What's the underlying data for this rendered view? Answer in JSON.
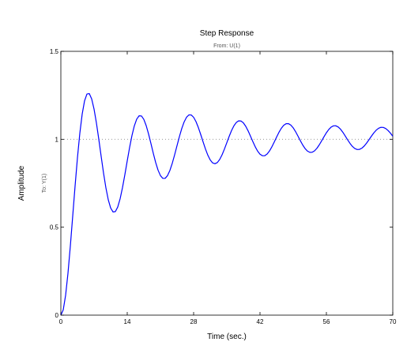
{
  "chart_data": {
    "type": "line",
    "title": "Step Response",
    "subtitle": "From: U(1)",
    "xlabel": "Time (sec.)",
    "ylabel": "Amplitude",
    "ylabel_secondary": "To: Y(1)",
    "xlim": [
      0,
      70
    ],
    "ylim": [
      0,
      1.5
    ],
    "xticks": [
      0,
      14,
      28,
      42,
      56,
      70
    ],
    "xtick_labels": [
      "0",
      "14",
      "28",
      "42",
      "56",
      "70"
    ],
    "yticks": [
      0,
      0.5,
      1,
      1.5
    ],
    "ytick_labels": [
      "0",
      "0.5",
      "1",
      "1.5"
    ],
    "reference_line": {
      "y": 1,
      "style": "dotted"
    },
    "grid": false,
    "colors": {
      "series": "#0000ff",
      "axes": "#000000",
      "reference": "#888888"
    },
    "series": [
      {
        "x": [
          0,
          0.5,
          1,
          1.5,
          2,
          2.5,
          3,
          3.5,
          4,
          4.5,
          5,
          5.5,
          6,
          6.5,
          7,
          7.5,
          8,
          8.5,
          9,
          9.5,
          10,
          10.5,
          11,
          11.5,
          12,
          12.5,
          13,
          13.5,
          14,
          14.5,
          15,
          15.5,
          16,
          16.5,
          17,
          17.5,
          18,
          18.5,
          19,
          19.5,
          20,
          20.5,
          21,
          21.5,
          22,
          22.5,
          23,
          23.5,
          24,
          24.5,
          25,
          25.5,
          26,
          26.5,
          27,
          27.5,
          28,
          28.5,
          29,
          29.5,
          30,
          30.5,
          31,
          31.5,
          32,
          32.5,
          33,
          33.5,
          34,
          34.5,
          35,
          35.5,
          36,
          36.5,
          37,
          37.5,
          38,
          38.5,
          39,
          39.5,
          40,
          40.5,
          41,
          41.5,
          42,
          42.5,
          43,
          43.5,
          44,
          44.5,
          45,
          45.5,
          46,
          46.5,
          47,
          47.5,
          48,
          48.5,
          49,
          49.5,
          50,
          50.5,
          51,
          51.5,
          52,
          52.5,
          53,
          53.5,
          54,
          54.5,
          55,
          55.5,
          56,
          56.5,
          57,
          57.5,
          58,
          58.5,
          59,
          59.5,
          60,
          60.5,
          61,
          61.5,
          62,
          62.5,
          63,
          63.5,
          64,
          64.5,
          65,
          65.5,
          66,
          66.5,
          67,
          67.5,
          68,
          68.5,
          69,
          69.5,
          70
        ],
        "y": [
          0,
          0.0295,
          0.1125,
          0.2379,
          0.3926,
          0.5626,
          0.7342,
          0.8948,
          1.0339,
          1.1435,
          1.2186,
          1.2571,
          1.2597,
          1.2295,
          1.1716,
          1.0926,
          1.0003,
          0.9028,
          0.8082,
          0.7239,
          0.656,
          0.6094,
          0.5867,
          0.5889,
          0.6149,
          0.6618,
          0.7251,
          0.799,
          0.8773,
          0.9535,
          1.0216,
          1.0766,
          1.1146,
          1.1334,
          1.1325,
          1.1129,
          1.0773,
          1.0299,
          0.9756,
          0.9197,
          0.8677,
          0.8244,
          0.7935,
          0.7777,
          0.7778,
          0.7935,
          0.8231,
          0.8639,
          0.9122,
          0.964,
          1.015,
          1.0611,
          1.0987,
          1.1251,
          1.1385,
          1.1383,
          1.125,
          1.1003,
          1.0665,
          1.0268,
          0.9849,
          0.9445,
          0.9093,
          0.8823,
          0.8657,
          0.8608,
          0.8676,
          0.8852,
          0.9117,
          0.9445,
          0.9805,
          1.0167,
          1.0497,
          1.0767,
          1.0956,
          1.1048,
          1.1038,
          1.0929,
          1.0734,
          1.0473,
          1.0172,
          0.9861,
          0.9569,
          0.9325,
          0.9152,
          0.9064,
          0.9068,
          0.9162,
          0.9335,
          0.957,
          0.9843,
          1.0128,
          1.0398,
          1.0627,
          1.0794,
          1.0884,
          1.0888,
          1.0808,
          1.0651,
          1.0435,
          1.0184,
          0.9923,
          0.9678,
          0.9474,
          0.9329,
          0.9257,
          0.9262,
          0.9342,
          0.9488,
          0.9684,
          0.9911,
          1.0147,
          1.0369,
          1.0557,
          1.0693,
          1.0765,
          1.0766,
          1.0698,
          1.0567,
          1.0387,
          1.0177,
          0.996,
          0.9758,
          0.959,
          0.9474,
          0.9418,
          0.9427,
          0.9497,
          0.9622,
          0.979,
          0.9982,
          1.0179,
          1.0363,
          1.0516,
          1.0624,
          1.0678,
          1.0674,
          1.0613,
          1.0501,
          1.0351,
          1.0174
        ]
      }
    ]
  }
}
